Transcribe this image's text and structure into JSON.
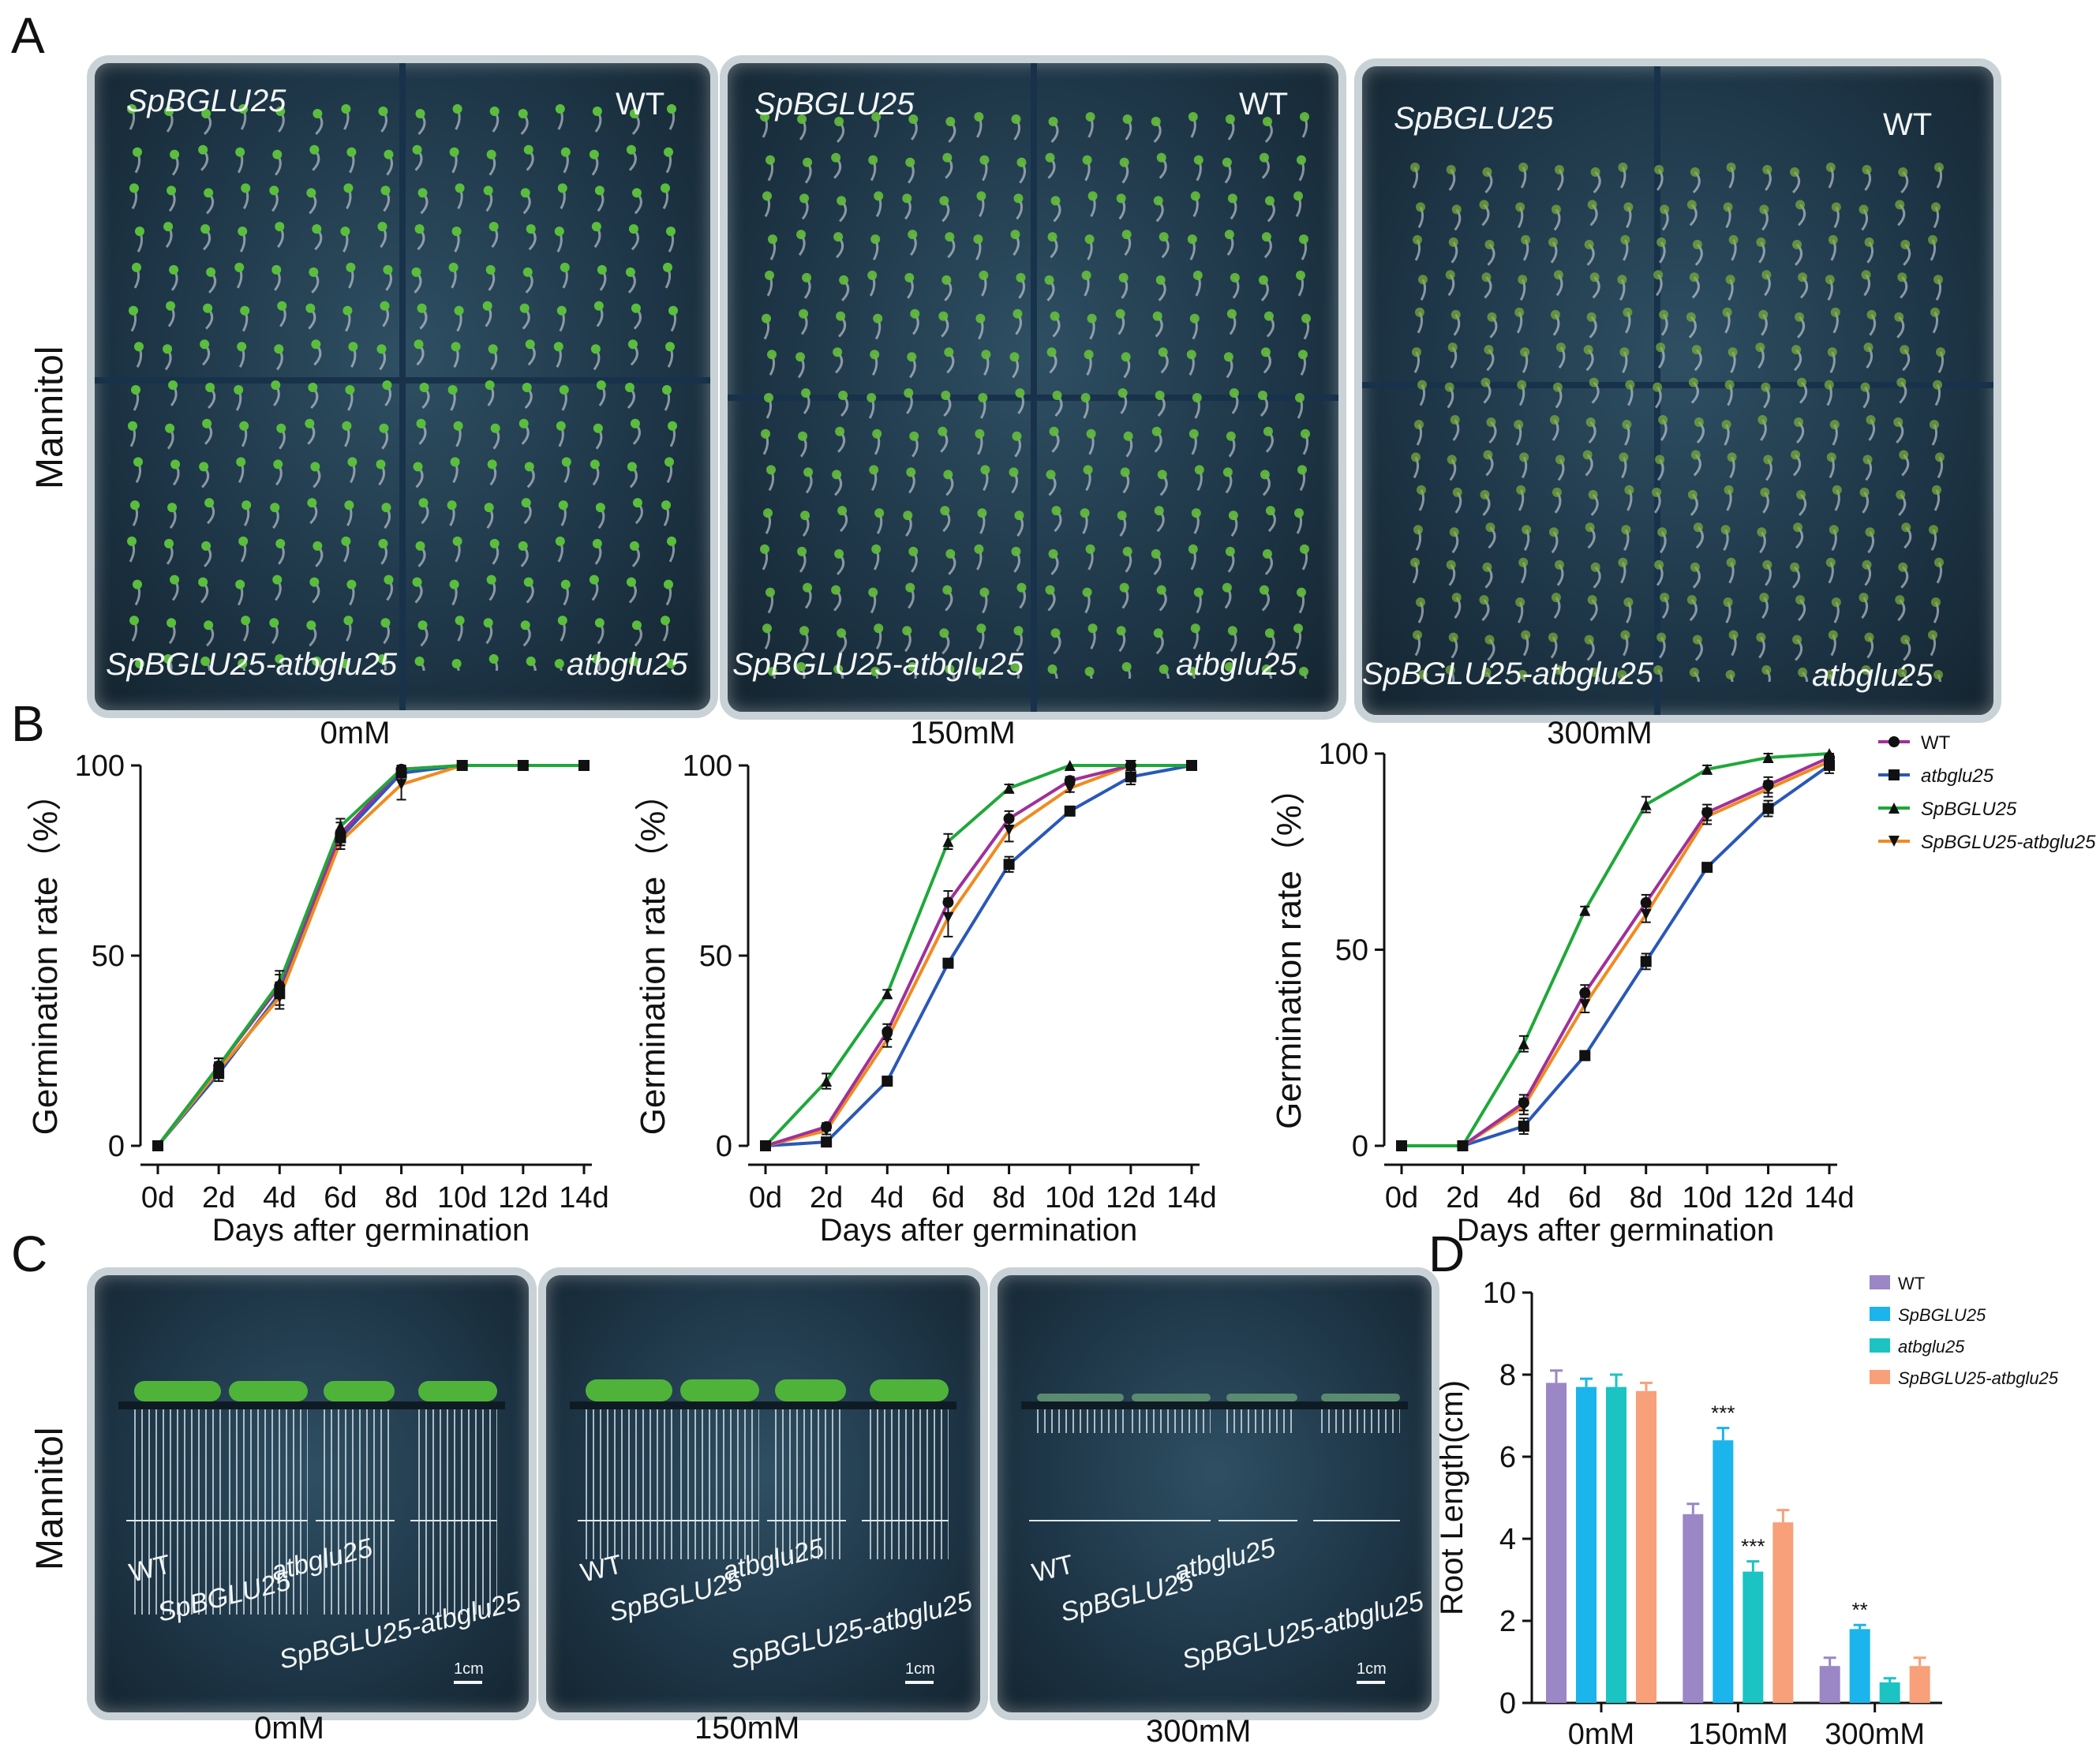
{
  "panels": {
    "A": "A",
    "B": "B",
    "C": "C",
    "D": "D"
  },
  "side_label": "Mannitol",
  "panel_a": {
    "plates": [
      {
        "top_left": "SpBGLU25",
        "top_right": "WT",
        "bottom_left": "SpBGLU25-atbglu25",
        "bottom_right": "atbglu25"
      },
      {
        "top_left": "SpBGLU25",
        "top_right": "WT",
        "bottom_left": "SpBGLU25-atbglu25",
        "bottom_right": "atbglu25"
      },
      {
        "top_left": "SpBGLU25",
        "top_right": "WT",
        "bottom_left": "SpBGLU25-atbglu25",
        "bottom_right": "atbglu25"
      }
    ]
  },
  "panel_c": {
    "concentrations": [
      "0mM",
      "150mM",
      "300mM"
    ],
    "genotypes": [
      "WT",
      "SpBGLU25",
      "atbglu25",
      "SpBGLU25-atbglu25"
    ],
    "scale_bar": "1cm"
  },
  "colors": {
    "WT": "#a0309a",
    "atbglu25": "#2a58b8",
    "SpBGLU25": "#1fa83a",
    "SpBGLU25-atbglu25": "#f08a20",
    "bar_WT": "#9b86c6",
    "bar_SpBGLU25": "#1bb4ec",
    "bar_atbglu25": "#1cc3c3",
    "bar_comp": "#f7a07a"
  },
  "chart_data": [
    {
      "type": "line",
      "title": "0mM",
      "xlabel": "Days after germination",
      "ylabel": "Germination rate（%）",
      "categories": [
        "0d",
        "2d",
        "4d",
        "6d",
        "8d",
        "10d",
        "12d",
        "14d"
      ],
      "ylim": [
        0,
        100
      ],
      "yticks": [
        "0",
        "50",
        "100"
      ],
      "series": [
        {
          "name": "WT",
          "values": [
            0,
            21,
            42,
            82,
            99,
            100,
            100,
            100
          ],
          "err": [
            0,
            2,
            3,
            3,
            1,
            0,
            0,
            0
          ]
        },
        {
          "name": "atbglu25",
          "values": [
            0,
            19,
            40,
            81,
            98,
            100,
            100,
            100
          ],
          "err": [
            0,
            2,
            3,
            2,
            1,
            0,
            0,
            0
          ]
        },
        {
          "name": "SpBGLU25",
          "values": [
            0,
            21,
            43,
            84,
            99,
            100,
            100,
            100
          ],
          "err": [
            0,
            2,
            3,
            2,
            1,
            0,
            0,
            0
          ]
        },
        {
          "name": "SpBGLU25-atbglu25",
          "values": [
            0,
            20,
            39,
            80,
            95,
            100,
            100,
            100
          ],
          "err": [
            0,
            2,
            3,
            2,
            4,
            0,
            0,
            0
          ]
        }
      ]
    },
    {
      "type": "line",
      "title": "150mM",
      "xlabel": "Days after germination",
      "ylabel": "Germination rate（%）",
      "categories": [
        "0d",
        "2d",
        "4d",
        "6d",
        "8d",
        "10d",
        "12d",
        "14d"
      ],
      "ylim": [
        0,
        100
      ],
      "yticks": [
        "0",
        "50",
        "100"
      ],
      "series": [
        {
          "name": "WT",
          "values": [
            0,
            5,
            30,
            64,
            86,
            96,
            100,
            100
          ],
          "err": [
            0,
            1,
            2,
            3,
            2,
            1,
            0,
            0
          ]
        },
        {
          "name": "atbglu25",
          "values": [
            0,
            1,
            17,
            48,
            74,
            88,
            97,
            100
          ],
          "err": [
            0,
            1,
            1,
            1,
            2,
            1,
            2,
            0
          ]
        },
        {
          "name": "SpBGLU25",
          "values": [
            0,
            17,
            40,
            80,
            94,
            100,
            100,
            100
          ],
          "err": [
            0,
            2,
            1,
            2,
            1,
            0,
            0,
            0
          ]
        },
        {
          "name": "SpBGLU25-atbglu25",
          "values": [
            0,
            4,
            28,
            60,
            83,
            94,
            100,
            100
          ],
          "err": [
            0,
            1,
            2,
            5,
            3,
            1,
            0,
            0
          ]
        }
      ]
    },
    {
      "type": "line",
      "title": "300mM",
      "xlabel": "Days after germination",
      "ylabel": "Germination rate（%）",
      "categories": [
        "0d",
        "2d",
        "4d",
        "6d",
        "8d",
        "10d",
        "12d",
        "14d"
      ],
      "ylim": [
        0,
        100
      ],
      "yticks": [
        "0",
        "50",
        "100"
      ],
      "series": [
        {
          "name": "WT",
          "values": [
            0,
            0,
            11,
            39,
            62,
            85,
            92,
            99
          ],
          "err": [
            0,
            0,
            2,
            2,
            2,
            2,
            2,
            1
          ]
        },
        {
          "name": "atbglu25",
          "values": [
            0,
            0,
            5,
            23,
            47,
            71,
            86,
            97
          ],
          "err": [
            0,
            0,
            2,
            1,
            2,
            1,
            2,
            2
          ]
        },
        {
          "name": "SpBGLU25",
          "values": [
            0,
            0,
            26,
            60,
            87,
            96,
            99,
            100
          ],
          "err": [
            0,
            0,
            2,
            1,
            2,
            1,
            1,
            0
          ]
        },
        {
          "name": "SpBGLU25-atbglu25",
          "values": [
            0,
            0,
            10,
            36,
            59,
            84,
            91,
            98
          ],
          "err": [
            0,
            0,
            2,
            2,
            2,
            2,
            2,
            1
          ]
        }
      ]
    },
    {
      "type": "bar",
      "title": "",
      "xlabel": "",
      "ylabel": "Root Length(cm)",
      "categories": [
        "0mM",
        "150mM",
        "300mM"
      ],
      "ylim": [
        0,
        10
      ],
      "yticks": [
        "0",
        "2",
        "4",
        "6",
        "8",
        "10"
      ],
      "series": [
        {
          "name": "WT",
          "values": [
            7.8,
            4.6,
            0.9
          ],
          "err": [
            0.3,
            0.25,
            0.2
          ],
          "sig": [
            "",
            "",
            ""
          ]
        },
        {
          "name": "SpBGLU25",
          "values": [
            7.7,
            6.4,
            1.8
          ],
          "err": [
            0.2,
            0.3,
            0.1
          ],
          "sig": [
            "",
            "***",
            "**"
          ]
        },
        {
          "name": "atbglu25",
          "values": [
            7.7,
            3.2,
            0.5
          ],
          "err": [
            0.3,
            0.25,
            0.1
          ],
          "sig": [
            "",
            "***",
            ""
          ]
        },
        {
          "name": "SpBGLU25-atbglu25",
          "values": [
            7.6,
            4.4,
            0.9
          ],
          "err": [
            0.2,
            0.3,
            0.2
          ],
          "sig": [
            "",
            "",
            ""
          ]
        }
      ]
    }
  ]
}
